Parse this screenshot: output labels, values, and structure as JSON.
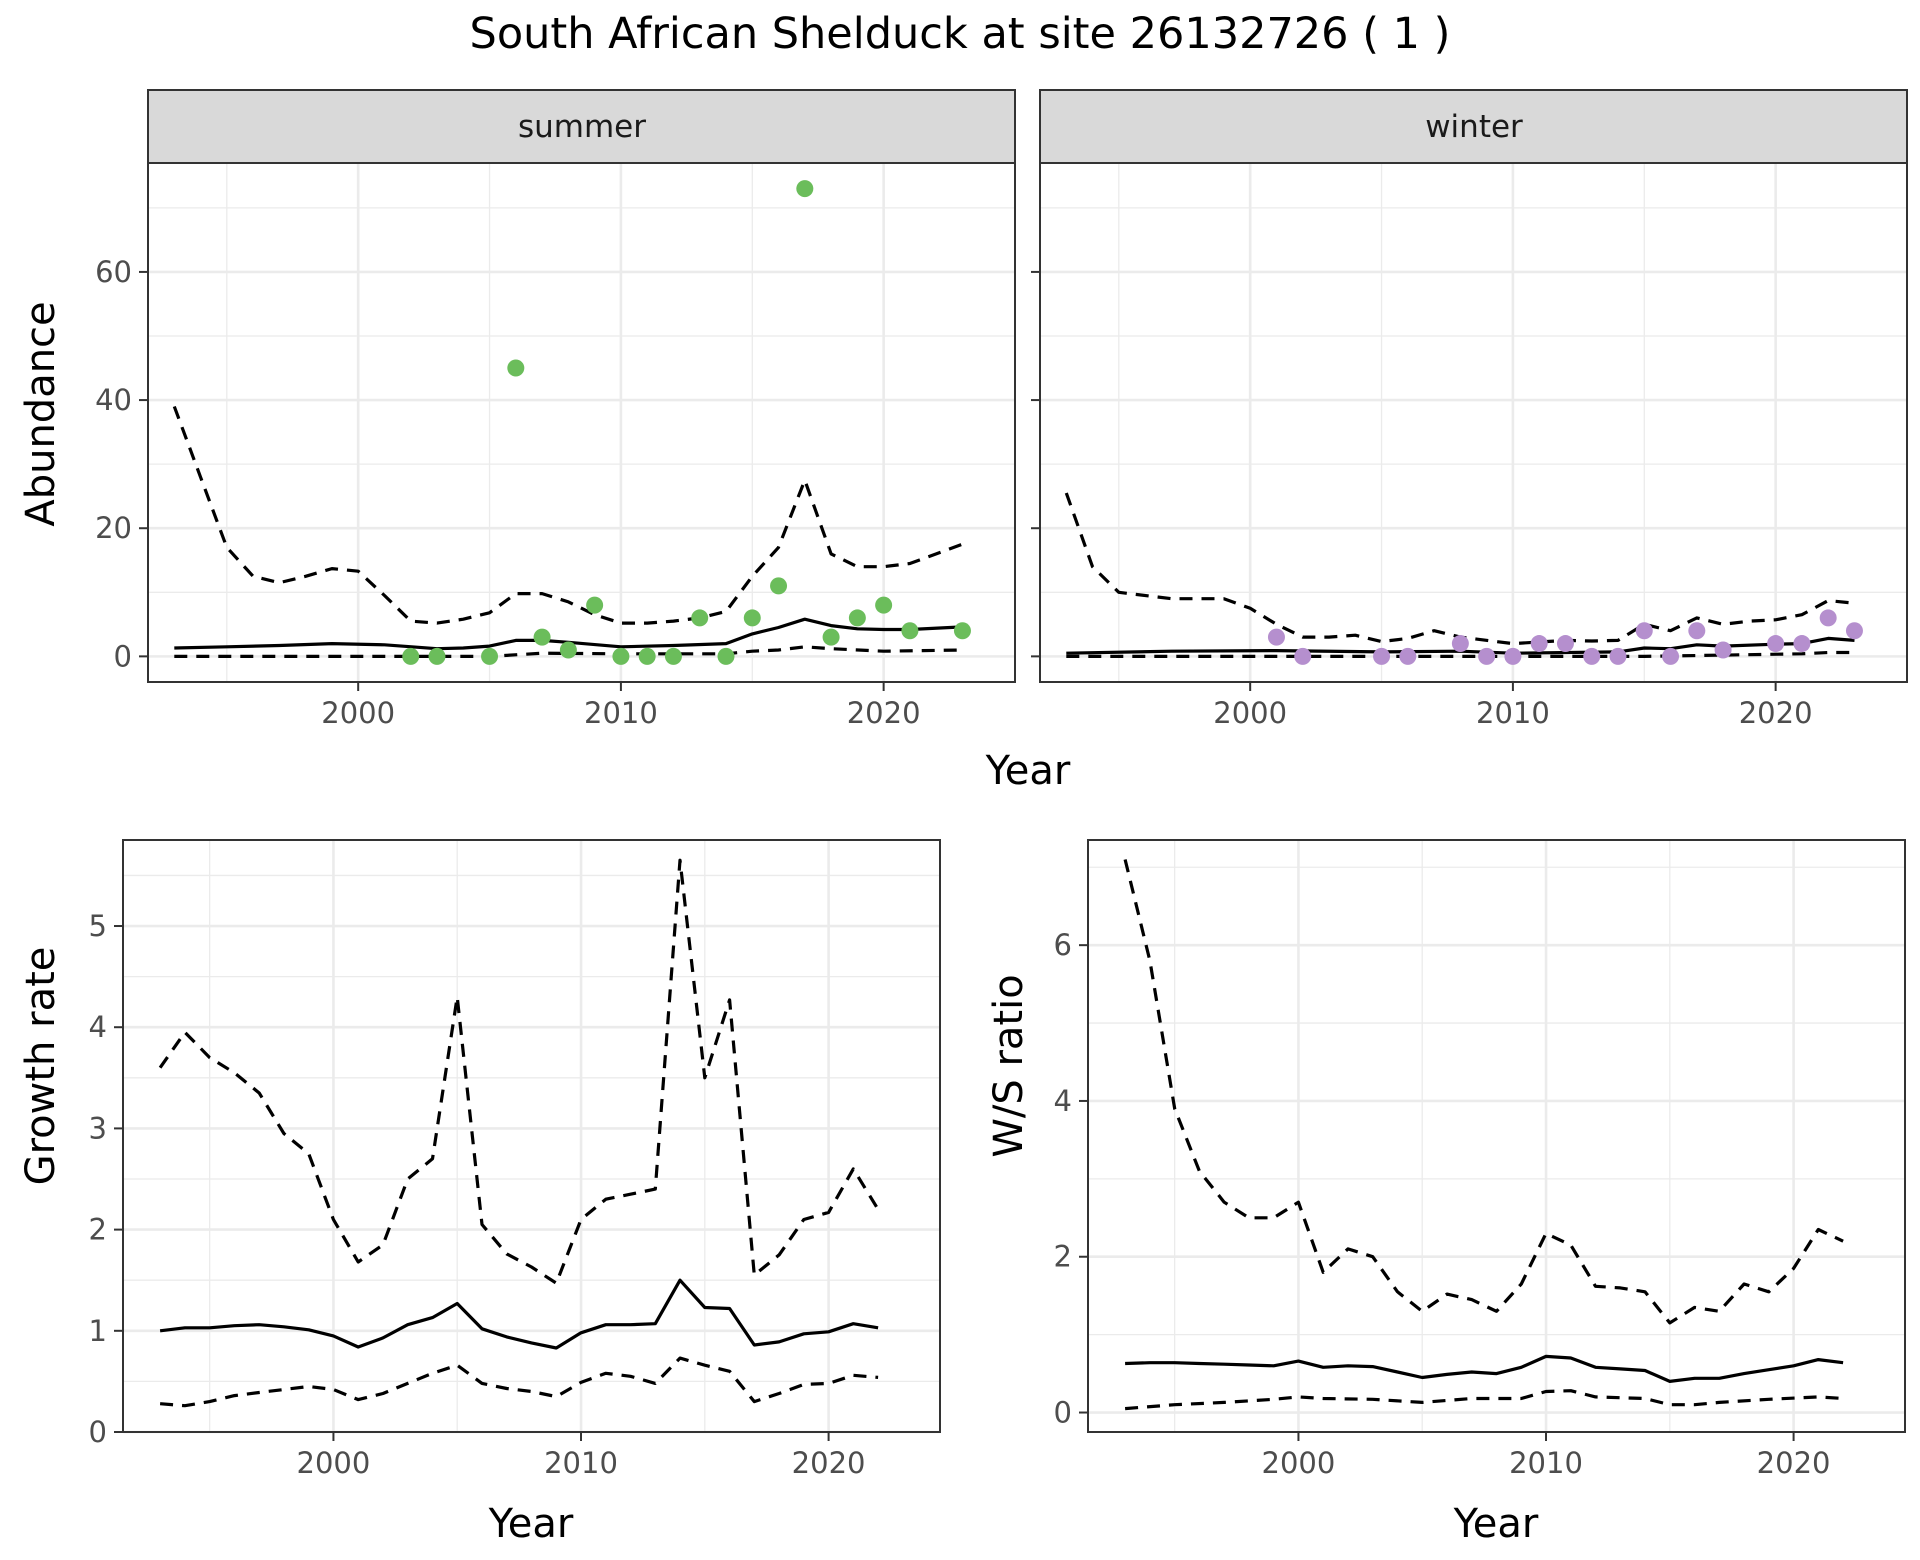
{
  "title": "South African Shelduck at site 26132726 ( 1 )",
  "colors": {
    "summer_points": "#6bbd5b",
    "winter_points": "#b58fce",
    "strip": "#d9d9d9",
    "grid": "#ebebeb",
    "line": "#000000"
  },
  "chart_data": [
    {
      "id": "summer",
      "type": "scatter",
      "strip_label": "summer",
      "xlabel": "Year",
      "ylabel": "Abundance",
      "xlim": [
        1992,
        2025
      ],
      "ylim": [
        -4,
        77
      ],
      "xticks": [
        2000,
        2010,
        2020
      ],
      "yticks": [
        0,
        20,
        40,
        60
      ],
      "grid": true,
      "point_color": "#6bbd5b",
      "points": {
        "x": [
          2002,
          2003,
          2005,
          2006,
          2007,
          2008,
          2009,
          2010,
          2011,
          2012,
          2013,
          2014,
          2015,
          2016,
          2017,
          2018,
          2019,
          2020,
          2021,
          2023
        ],
        "y": [
          0,
          0,
          0,
          45,
          3,
          1,
          8,
          0,
          0,
          0,
          6,
          0,
          6,
          11,
          73,
          3,
          6,
          8,
          4,
          4
        ]
      },
      "series": [
        {
          "role": "mean",
          "style": "solid",
          "x": [
            1993,
            1995,
            1997,
            1999,
            2001,
            2003,
            2004,
            2005,
            2006,
            2007,
            2008,
            2010,
            2012,
            2014,
            2015,
            2016,
            2017,
            2018,
            2019,
            2020,
            2021,
            2023
          ],
          "y": [
            1.3,
            1.5,
            1.7,
            2.0,
            1.8,
            1.2,
            1.3,
            1.6,
            2.5,
            2.5,
            2.2,
            1.5,
            1.7,
            2.0,
            3.5,
            4.5,
            5.8,
            4.8,
            4.3,
            4.2,
            4.2,
            4.6
          ]
        },
        {
          "role": "upper",
          "style": "dashed",
          "x": [
            1993,
            1994,
            1995,
            1996,
            1997,
            1998,
            1999,
            2000,
            2001,
            2002,
            2003,
            2004,
            2005,
            2006,
            2007,
            2008,
            2009,
            2010,
            2011,
            2012,
            2013,
            2014,
            2015,
            2016,
            2017,
            2018,
            2019,
            2020,
            2021,
            2022,
            2023
          ],
          "y": [
            39,
            28,
            17,
            12.5,
            11.5,
            12.5,
            13.7,
            13.3,
            9.5,
            5.5,
            5.2,
            5.8,
            6.8,
            9.8,
            9.8,
            8.5,
            6.5,
            5.2,
            5.2,
            5.5,
            6,
            7,
            12.5,
            17,
            27.5,
            16,
            14,
            14,
            14.5,
            16,
            17.5
          ]
        },
        {
          "role": "lower",
          "style": "dashed",
          "x": [
            1993,
            1997,
            2001,
            2005,
            2007,
            2010,
            2014,
            2015,
            2016,
            2017,
            2018,
            2020,
            2023
          ],
          "y": [
            0,
            0,
            0,
            0,
            0.5,
            0.4,
            0.4,
            0.8,
            1.0,
            1.5,
            1.2,
            0.8,
            1.0
          ]
        }
      ]
    },
    {
      "id": "winter",
      "type": "scatter",
      "strip_label": "winter",
      "xlabel": "Year",
      "ylabel": "Abundance",
      "xlim": [
        1992,
        2025
      ],
      "ylim": [
        -4,
        77
      ],
      "xticks": [
        2000,
        2010,
        2020
      ],
      "yticks": [
        0,
        20,
        40,
        60
      ],
      "grid": true,
      "point_color": "#b58fce",
      "points": {
        "x": [
          2001,
          2002,
          2005,
          2006,
          2008,
          2009,
          2010,
          2011,
          2012,
          2013,
          2014,
          2015,
          2016,
          2017,
          2018,
          2020,
          2021,
          2022,
          2023
        ],
        "y": [
          3,
          0,
          0,
          0,
          2,
          0,
          0,
          2,
          2,
          0,
          0,
          4,
          0,
          4,
          1,
          2,
          2,
          6,
          4
        ]
      },
      "series": [
        {
          "role": "mean",
          "style": "solid",
          "x": [
            1993,
            1997,
            2001,
            2005,
            2008,
            2010,
            2014,
            2015,
            2016,
            2017,
            2018,
            2020,
            2021,
            2022,
            2023
          ],
          "y": [
            0.5,
            0.8,
            0.9,
            0.7,
            0.8,
            0.5,
            0.7,
            1.3,
            1.2,
            1.8,
            1.6,
            1.9,
            2.0,
            2.8,
            2.5
          ]
        },
        {
          "role": "upper",
          "style": "dashed",
          "x": [
            1993,
            1994,
            1995,
            1997,
            1999,
            2000,
            2001,
            2002,
            2003,
            2004,
            2005,
            2006,
            2007,
            2008,
            2010,
            2012,
            2013,
            2014,
            2015,
            2016,
            2017,
            2018,
            2019,
            2020,
            2021,
            2022,
            2023
          ],
          "y": [
            25.5,
            14,
            10,
            9,
            9,
            7.5,
            5,
            3,
            3,
            3.3,
            2.3,
            2.8,
            4,
            3,
            2,
            2.5,
            2.4,
            2.5,
            5,
            4,
            6,
            5,
            5.5,
            5.7,
            6.5,
            8.7,
            8.3
          ]
        },
        {
          "role": "lower",
          "style": "dashed",
          "x": [
            1993,
            2000,
            2005,
            2010,
            2015,
            2018,
            2021,
            2022,
            2023
          ],
          "y": [
            0,
            0,
            0,
            0,
            0,
            0.2,
            0.4,
            0.6,
            0.6
          ]
        }
      ]
    },
    {
      "id": "growth",
      "type": "line",
      "xlabel": "Year",
      "ylabel": "Growth rate",
      "xlim": [
        1991.5,
        2024.5
      ],
      "ylim": [
        0,
        5.85
      ],
      "xticks": [
        2000,
        2010,
        2020
      ],
      "yticks": [
        0,
        1,
        2,
        3,
        4,
        5
      ],
      "grid": true,
      "series": [
        {
          "role": "mean",
          "style": "solid",
          "x": [
            1993,
            1994,
            1995,
            1996,
            1997,
            1998,
            1999,
            2000,
            2001,
            2002,
            2003,
            2004,
            2005,
            2006,
            2007,
            2008,
            2009,
            2010,
            2011,
            2012,
            2013,
            2014,
            2015,
            2016,
            2017,
            2018,
            2019,
            2020,
            2021,
            2022
          ],
          "y": [
            1.0,
            1.03,
            1.03,
            1.05,
            1.06,
            1.04,
            1.01,
            0.95,
            0.84,
            0.93,
            1.06,
            1.13,
            1.27,
            1.02,
            0.94,
            0.88,
            0.83,
            0.98,
            1.06,
            1.06,
            1.07,
            1.5,
            1.23,
            1.22,
            0.86,
            0.89,
            0.97,
            0.99,
            1.07,
            1.03
          ]
        },
        {
          "role": "upper",
          "style": "dashed",
          "x": [
            1993,
            1994,
            1995,
            1996,
            1997,
            1998,
            1999,
            2000,
            2001,
            2002,
            2003,
            2004,
            2005,
            2006,
            2007,
            2008,
            2009,
            2010,
            2011,
            2012,
            2013,
            2014,
            2015,
            2016,
            2017,
            2018,
            2019,
            2020,
            2021,
            2022
          ],
          "y": [
            3.6,
            3.95,
            3.7,
            3.55,
            3.35,
            2.95,
            2.75,
            2.1,
            1.68,
            1.85,
            2.5,
            2.7,
            4.3,
            2.05,
            1.76,
            1.63,
            1.47,
            2.1,
            2.3,
            2.35,
            2.4,
            5.65,
            3.5,
            4.27,
            1.55,
            1.75,
            2.1,
            2.17,
            2.6,
            2.2
          ]
        },
        {
          "role": "lower",
          "style": "dashed",
          "x": [
            1993,
            1994,
            1995,
            1996,
            1997,
            1998,
            1999,
            2000,
            2001,
            2002,
            2003,
            2004,
            2005,
            2006,
            2007,
            2008,
            2009,
            2010,
            2011,
            2012,
            2013,
            2014,
            2015,
            2016,
            2017,
            2018,
            2019,
            2020,
            2021,
            2022
          ],
          "y": [
            0.28,
            0.26,
            0.3,
            0.36,
            0.39,
            0.42,
            0.45,
            0.42,
            0.32,
            0.38,
            0.48,
            0.58,
            0.66,
            0.48,
            0.43,
            0.4,
            0.35,
            0.49,
            0.58,
            0.55,
            0.48,
            0.73,
            0.66,
            0.6,
            0.3,
            0.38,
            0.47,
            0.48,
            0.56,
            0.54
          ]
        }
      ]
    },
    {
      "id": "ws",
      "type": "line",
      "xlabel": "Year",
      "ylabel": "W/S ratio",
      "xlim": [
        1991.5,
        2024.5
      ],
      "ylim": [
        -0.25,
        7.35
      ],
      "xticks": [
        2000,
        2010,
        2020
      ],
      "yticks": [
        0,
        2,
        4,
        6
      ],
      "grid": true,
      "series": [
        {
          "role": "mean",
          "style": "solid",
          "x": [
            1993,
            1994,
            1995,
            1996,
            1997,
            1998,
            1999,
            2000,
            2001,
            2002,
            2003,
            2004,
            2005,
            2006,
            2007,
            2008,
            2009,
            2010,
            2011,
            2012,
            2013,
            2014,
            2015,
            2016,
            2017,
            2018,
            2019,
            2020,
            2021,
            2022
          ],
          "y": [
            0.63,
            0.64,
            0.64,
            0.63,
            0.62,
            0.61,
            0.6,
            0.66,
            0.58,
            0.6,
            0.59,
            0.52,
            0.45,
            0.49,
            0.52,
            0.5,
            0.58,
            0.72,
            0.7,
            0.58,
            0.56,
            0.54,
            0.4,
            0.44,
            0.44,
            0.5,
            0.55,
            0.6,
            0.68,
            0.64
          ]
        },
        {
          "role": "upper",
          "style": "dashed",
          "x": [
            1993,
            1994,
            1995,
            1996,
            1997,
            1998,
            1999,
            2000,
            2001,
            2002,
            2003,
            2004,
            2005,
            2006,
            2007,
            2008,
            2009,
            2010,
            2011,
            2012,
            2013,
            2014,
            2015,
            2016,
            2017,
            2018,
            2019,
            2020,
            2021,
            2022
          ],
          "y": [
            7.1,
            5.8,
            3.9,
            3.1,
            2.7,
            2.5,
            2.5,
            2.7,
            1.8,
            2.1,
            2.0,
            1.55,
            1.3,
            1.52,
            1.45,
            1.3,
            1.65,
            2.3,
            2.15,
            1.62,
            1.6,
            1.55,
            1.15,
            1.35,
            1.3,
            1.65,
            1.55,
            1.85,
            2.35,
            2.2
          ]
        },
        {
          "role": "lower",
          "style": "dashed",
          "x": [
            1993,
            1995,
            1997,
            1999,
            2000,
            2001,
            2003,
            2005,
            2007,
            2009,
            2010,
            2011,
            2012,
            2014,
            2015,
            2016,
            2017,
            2019,
            2021,
            2022
          ],
          "y": [
            0.05,
            0.1,
            0.13,
            0.17,
            0.2,
            0.18,
            0.17,
            0.13,
            0.18,
            0.18,
            0.27,
            0.28,
            0.2,
            0.18,
            0.1,
            0.1,
            0.13,
            0.17,
            0.2,
            0.18
          ]
        }
      ]
    }
  ]
}
